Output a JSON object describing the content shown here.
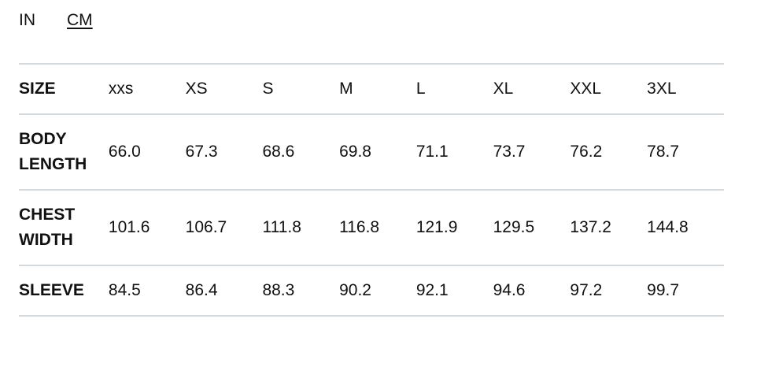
{
  "units": {
    "options": [
      "IN",
      "CM"
    ],
    "selected": "CM"
  },
  "table": {
    "rows": [
      {
        "label": "SIZE",
        "values": [
          "xxs",
          "XS",
          "S",
          "M",
          "L",
          "XL",
          "XXL",
          "3XL"
        ]
      },
      {
        "label": "BODY LENGTH",
        "label_lines": [
          "BODY",
          "LENGTH"
        ],
        "values": [
          "66.0",
          "67.3",
          "68.6",
          "69.8",
          "71.1",
          "73.7",
          "76.2",
          "78.7"
        ]
      },
      {
        "label": "CHEST WIDTH",
        "label_lines": [
          "CHEST",
          "WIDTH"
        ],
        "values": [
          "101.6",
          "106.7",
          "111.8",
          "116.8",
          "121.9",
          "129.5",
          "137.2",
          "144.8"
        ]
      },
      {
        "label": "SLEEVE",
        "values": [
          "84.5",
          "86.4",
          "88.3",
          "90.2",
          "92.1",
          "94.6",
          "97.2",
          "99.7"
        ]
      }
    ]
  }
}
